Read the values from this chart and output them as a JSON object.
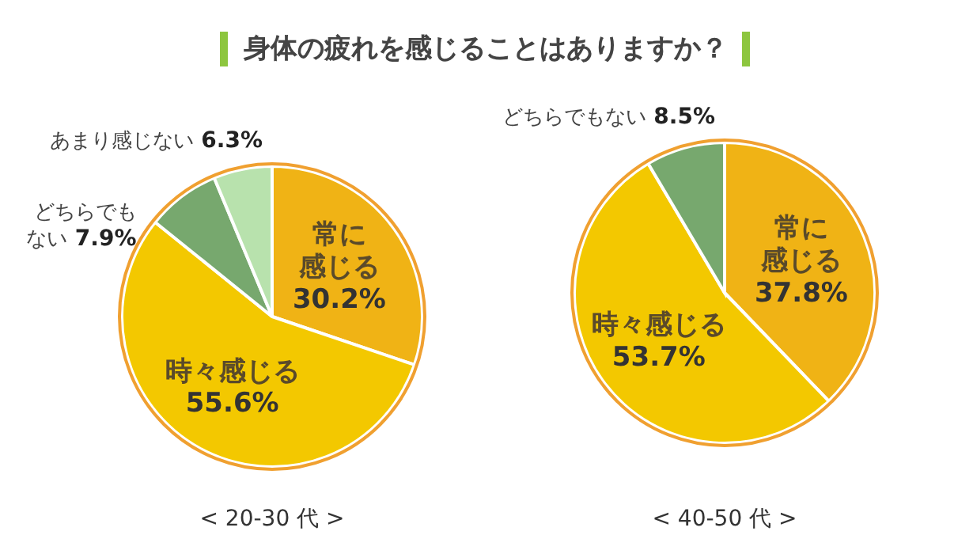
{
  "chart_data": [
    {
      "type": "pie",
      "title": "身体の疲れを感じることはありますか？",
      "xlabel": "< 20-30 代 >",
      "categories": [
        "常に感じる",
        "時々感じる",
        "どちらでもない",
        "あまり感じない"
      ],
      "values": [
        30.2,
        55.6,
        7.9,
        6.3
      ],
      "value_labels": [
        "30.2%",
        "55.6%",
        "7.9%",
        "6.3%"
      ],
      "colors": [
        "#f0b315",
        "#f3c800",
        "#77a86e",
        "#b8e2ad"
      ]
    },
    {
      "type": "pie",
      "xlabel": "< 40-50 代 >",
      "categories": [
        "常に感じる",
        "時々感じる",
        "どちらでもない"
      ],
      "values": [
        37.8,
        53.7,
        8.5
      ],
      "value_labels": [
        "37.8%",
        "53.7%",
        "8.5%"
      ],
      "colors": [
        "#f0b315",
        "#f3c800",
        "#77a86e"
      ]
    }
  ]
}
